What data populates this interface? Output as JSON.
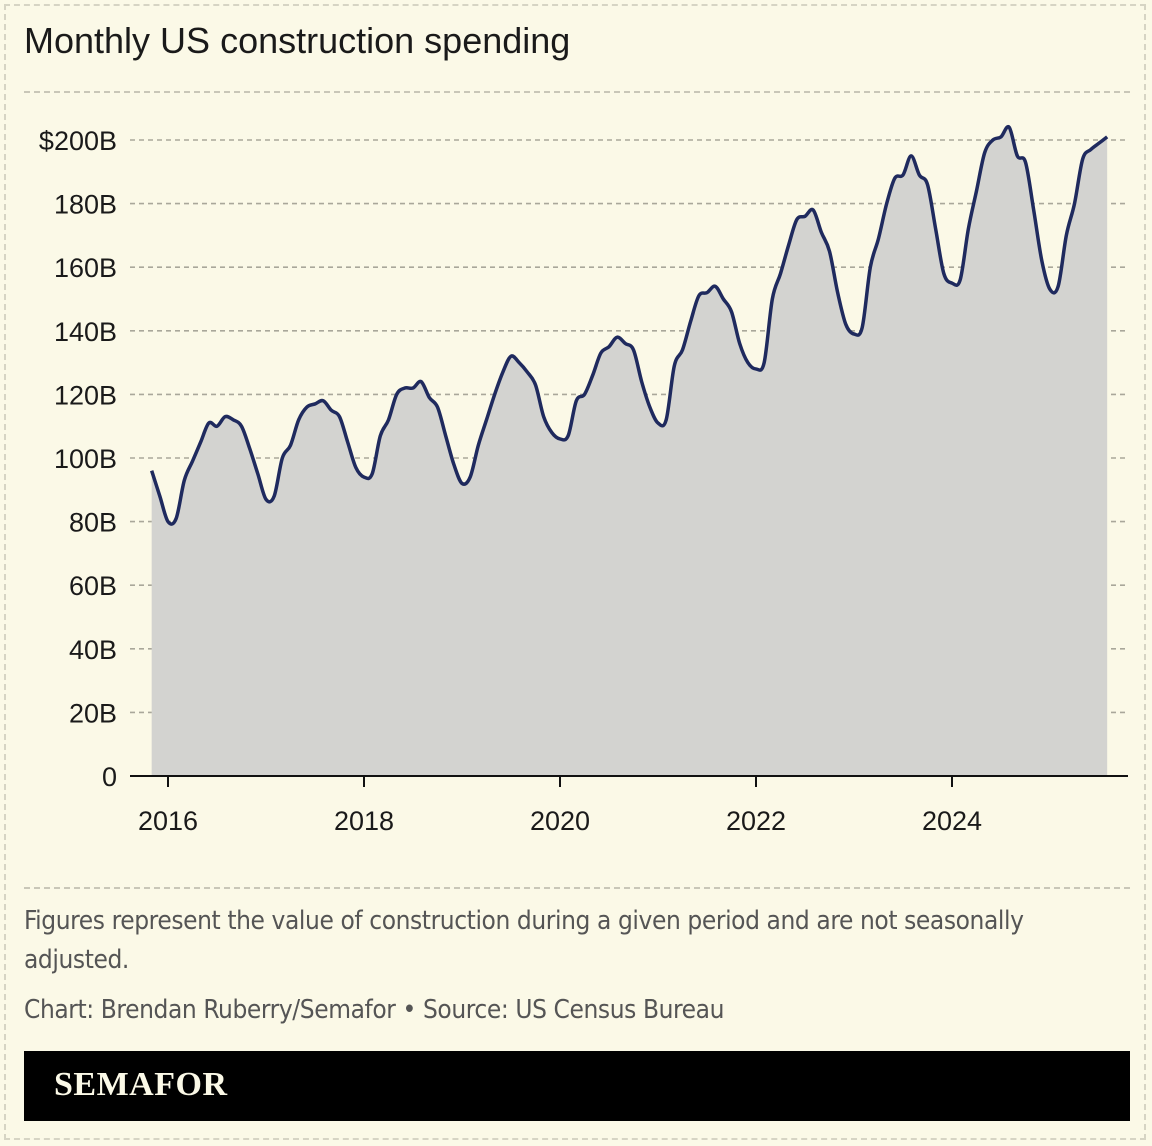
{
  "chart_data": {
    "type": "area",
    "title": "Monthly US construction spending",
    "xlabel": "",
    "ylabel": "",
    "ylim": [
      0,
      200
    ],
    "yticks": [
      0,
      20,
      40,
      60,
      80,
      100,
      120,
      140,
      160,
      180,
      200
    ],
    "ytick_labels": [
      "0",
      "20B",
      "40B",
      "60B",
      "80B",
      "100B",
      "120B",
      "140B",
      "160B",
      "180B",
      "$200B"
    ],
    "xticks": [
      2016,
      2018,
      2020,
      2022,
      2024
    ],
    "xtick_labels": [
      "2016",
      "2018",
      "2020",
      "2022",
      "2024"
    ],
    "x_start": "2015-11",
    "x_end": "2025-08",
    "grid": "horizontal dashed",
    "line_color": "#1f2a5e",
    "fill_color": "#d3d3d0",
    "series": [
      {
        "values": [
          96,
          88,
          80,
          81,
          93,
          99,
          105,
          111,
          110,
          113,
          112,
          110,
          103,
          95,
          87,
          88,
          100,
          104,
          112,
          116,
          117,
          118,
          115,
          113,
          105,
          97,
          94,
          95,
          107,
          112,
          120,
          122,
          122,
          124,
          119,
          116,
          107,
          98,
          92,
          94,
          104,
          112,
          120,
          127,
          132,
          130,
          127,
          123,
          113,
          108,
          106,
          107,
          118,
          120,
          126,
          133,
          135,
          138,
          136,
          134,
          124,
          116,
          111,
          112,
          129,
          134,
          143,
          151,
          152,
          154,
          150,
          146,
          136,
          130,
          128,
          130,
          150,
          158,
          167,
          175,
          176,
          178,
          171,
          165,
          152,
          142,
          139,
          141,
          160,
          169,
          180,
          188,
          189,
          195,
          189,
          186,
          172,
          158,
          155,
          156,
          172,
          184,
          196,
          200,
          201,
          204,
          195,
          193,
          178,
          162,
          153,
          154,
          170,
          180,
          194,
          197,
          199,
          201
        ]
      }
    ]
  },
  "footer": {
    "note": "Figures represent the value of construction during a given period and are not seasonally adjusted.",
    "credit": "Chart: Brendan Ruberry/Semafor • Source: US Census Bureau",
    "brand": "SEMAFOR"
  }
}
